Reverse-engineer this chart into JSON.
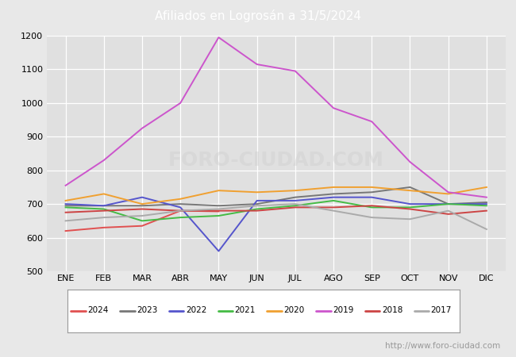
{
  "title": "Afiliados en Logrosán a 31/5/2024",
  "title_bg_color": "#4a8fd4",
  "title_text_color": "white",
  "ylim": [
    500,
    1200
  ],
  "yticks": [
    500,
    600,
    700,
    800,
    900,
    1000,
    1100,
    1200
  ],
  "months": [
    "ENE",
    "FEB",
    "MAR",
    "ABR",
    "MAY",
    "JUN",
    "JUL",
    "AGO",
    "SEP",
    "OCT",
    "NOV",
    "DIC"
  ],
  "watermark": "http://www.foro-ciudad.com",
  "series": {
    "2024": {
      "color": "#e05050",
      "data": [
        620,
        630,
        635,
        680,
        678,
        null,
        null,
        null,
        null,
        null,
        null,
        null
      ]
    },
    "2023": {
      "color": "#777777",
      "data": [
        695,
        695,
        695,
        700,
        695,
        700,
        720,
        730,
        735,
        750,
        700,
        705
      ]
    },
    "2022": {
      "color": "#5555cc",
      "data": [
        700,
        695,
        720,
        690,
        560,
        710,
        710,
        720,
        720,
        700,
        700,
        700
      ]
    },
    "2021": {
      "color": "#44bb44",
      "data": [
        690,
        685,
        650,
        660,
        665,
        685,
        695,
        710,
        690,
        690,
        700,
        695
      ]
    },
    "2020": {
      "color": "#f0a030",
      "data": [
        710,
        730,
        700,
        715,
        740,
        735,
        740,
        750,
        750,
        740,
        730,
        750
      ]
    },
    "2019": {
      "color": "#cc55cc",
      "data": [
        755,
        830,
        925,
        1000,
        1195,
        1115,
        1095,
        985,
        945,
        825,
        735,
        720
      ]
    },
    "2018": {
      "color": "#cc4444",
      "data": [
        675,
        680,
        685,
        680,
        680,
        680,
        690,
        690,
        695,
        685,
        670,
        680
      ]
    },
    "2017": {
      "color": "#aaaaaa",
      "data": [
        650,
        660,
        665,
        680,
        685,
        695,
        700,
        680,
        660,
        655,
        680,
        625
      ]
    }
  },
  "legend_order": [
    "2024",
    "2023",
    "2022",
    "2021",
    "2020",
    "2019",
    "2018",
    "2017"
  ],
  "fig_bg_color": "#e8e8e8",
  "plot_bg_color": "#e0e0e0",
  "grid_color": "white",
  "watermark_color": "#c0c0c0",
  "watermark_fontsize": 7.5,
  "title_fontsize": 11,
  "tick_fontsize": 8
}
